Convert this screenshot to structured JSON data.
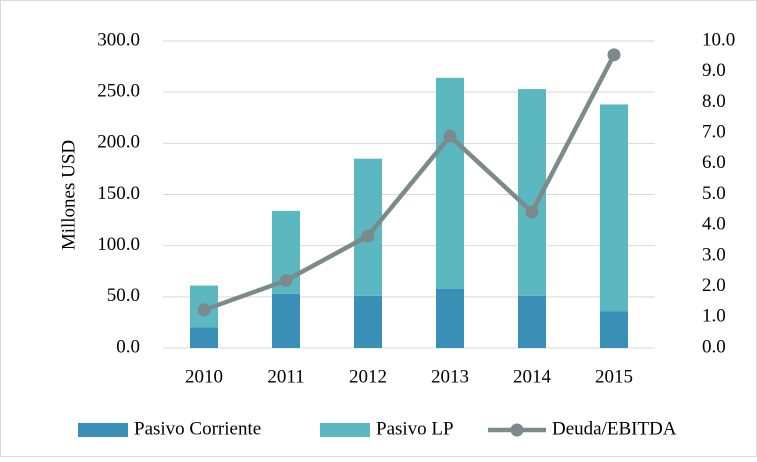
{
  "chart_data": {
    "type": "bar-line",
    "y_label": "Millones USD",
    "categories": [
      "2010",
      "2011",
      "2012",
      "2013",
      "2014",
      "2015"
    ],
    "series": [
      {
        "name": "Pasivo Corriente",
        "color": "#3a8fb7",
        "type": "bar",
        "values": [
          20,
          53,
          51,
          58,
          51,
          36
        ]
      },
      {
        "name": "Pasivo LP",
        "color": "#5bb8c1",
        "type": "bar",
        "values": [
          41,
          81,
          134,
          206,
          202,
          202
        ]
      },
      {
        "name": "Deuda/EBITDA",
        "color": "#7b8a8b",
        "type": "line",
        "axis": "y2",
        "values": [
          1.24,
          2.2,
          3.65,
          6.9,
          4.43,
          9.55
        ]
      }
    ],
    "stacked": true,
    "ylim": [
      0,
      300
    ],
    "yticks": [
      {
        "value": 0,
        "label": "0.0"
      },
      {
        "value": 50,
        "label": "50.0"
      },
      {
        "value": 100,
        "label": "100.0"
      },
      {
        "value": 150,
        "label": "150.0"
      },
      {
        "value": 200,
        "label": "200.0"
      },
      {
        "value": 250,
        "label": "250.0"
      },
      {
        "value": 300,
        "label": "300.0"
      }
    ],
    "y2lim": [
      0,
      10
    ],
    "y2ticks": [
      {
        "value": 0,
        "label": "0.0"
      },
      {
        "value": 1,
        "label": "1.0"
      },
      {
        "value": 2,
        "label": "2.0"
      },
      {
        "value": 3,
        "label": "3.0"
      },
      {
        "value": 4,
        "label": "4.0"
      },
      {
        "value": 5,
        "label": "5.0"
      },
      {
        "value": 6,
        "label": "6.0"
      },
      {
        "value": 7,
        "label": "7.0"
      },
      {
        "value": 8,
        "label": "8.0"
      },
      {
        "value": 9,
        "label": "9.0"
      },
      {
        "value": 10,
        "label": "10.0"
      }
    ],
    "grid": true,
    "legend": "bottom"
  }
}
